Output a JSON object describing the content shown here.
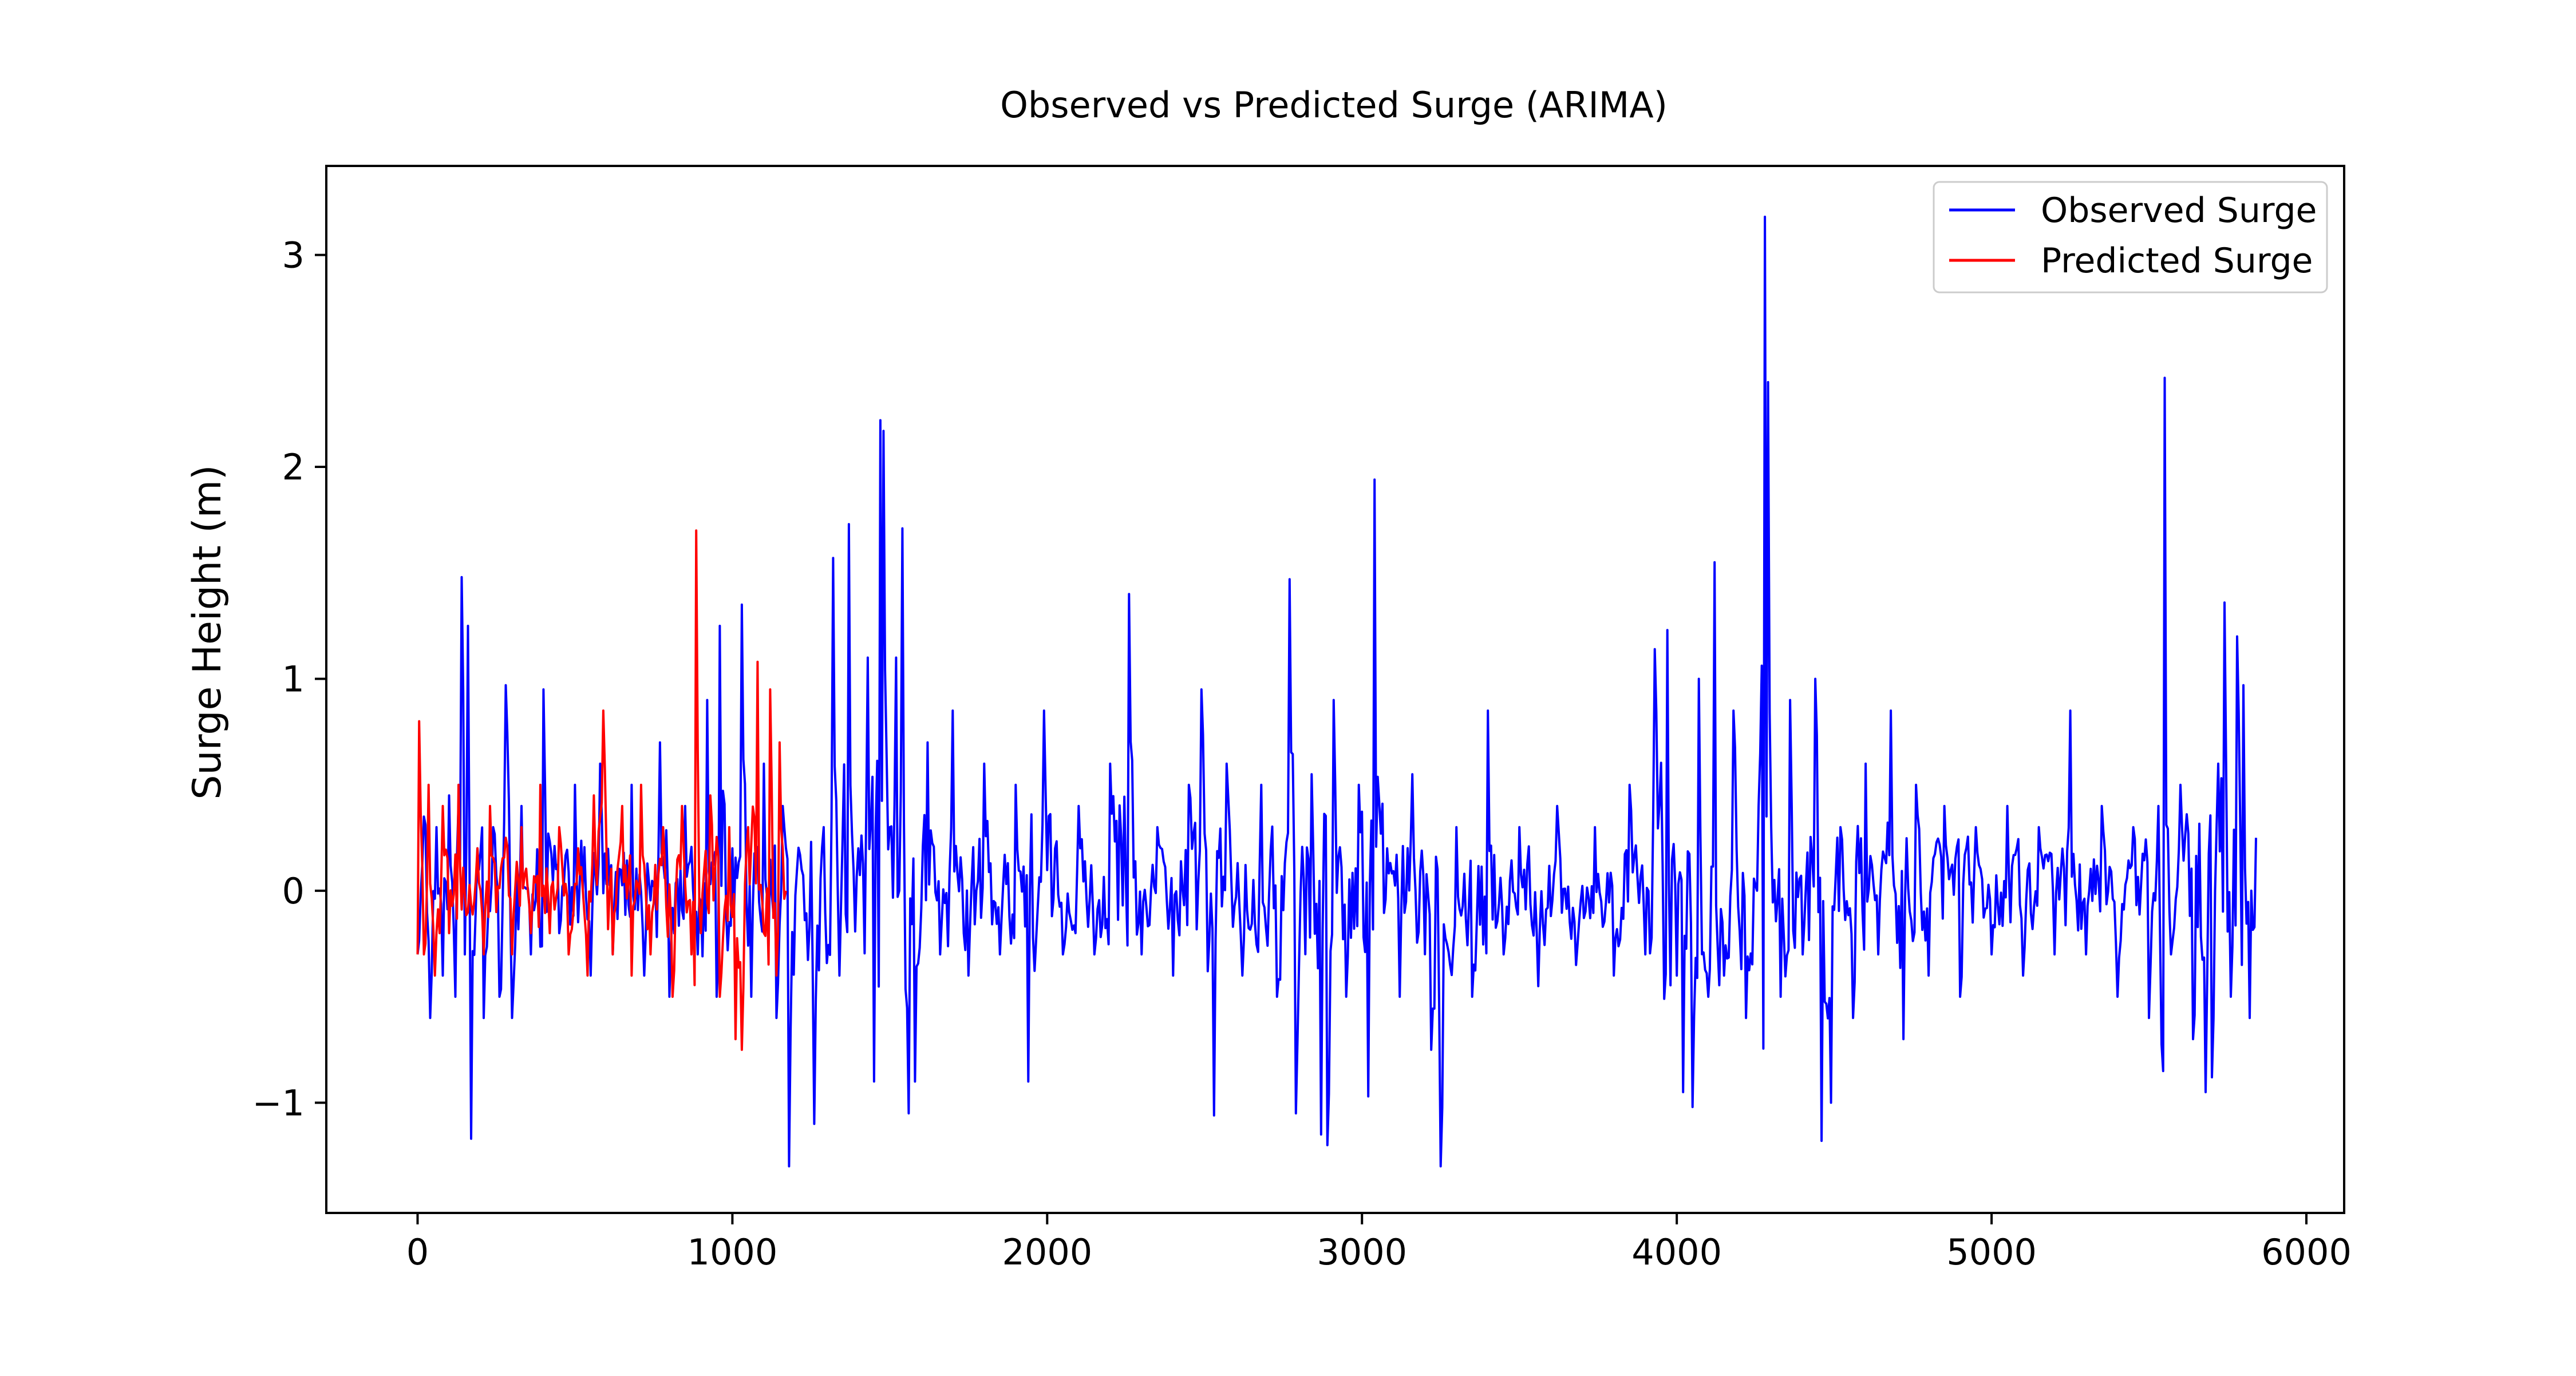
{
  "chart_data": {
    "type": "line",
    "title": "Observed vs Predicted Surge (ARIMA)",
    "xlabel": "",
    "ylabel": "Surge Height (m)",
    "xlim": [
      -290,
      6120
    ],
    "ylim": [
      -1.52,
      3.42
    ],
    "xticks": [
      0,
      1000,
      2000,
      3000,
      4000,
      5000,
      6000
    ],
    "xtick_labels": [
      "0",
      "1000",
      "2000",
      "3000",
      "4000",
      "5000",
      "6000"
    ],
    "yticks": [
      -1,
      0,
      1,
      2,
      3
    ],
    "ytick_labels": [
      "−1",
      "0",
      "1",
      "2",
      "3"
    ],
    "grid": false,
    "legend_position": "top-right",
    "series": [
      {
        "name": "Observed Surge",
        "color": "#0000ff",
        "x_start": 0,
        "x_end": 5840,
        "approx_points": [
          [
            0,
            -0.3
          ],
          [
            20,
            0.35
          ],
          [
            40,
            -0.6
          ],
          [
            60,
            0.3
          ],
          [
            80,
            -0.4
          ],
          [
            100,
            0.45
          ],
          [
            120,
            -0.5
          ],
          [
            140,
            1.48
          ],
          [
            150,
            -0.3
          ],
          [
            160,
            1.25
          ],
          [
            170,
            -1.17
          ],
          [
            190,
            0.2
          ],
          [
            210,
            -0.6
          ],
          [
            240,
            0.3
          ],
          [
            260,
            -0.5
          ],
          [
            280,
            0.97
          ],
          [
            300,
            -0.6
          ],
          [
            330,
            0.4
          ],
          [
            360,
            -0.3
          ],
          [
            400,
            0.95
          ],
          [
            450,
            -0.2
          ],
          [
            500,
            0.5
          ],
          [
            550,
            -0.4
          ],
          [
            580,
            0.6
          ],
          [
            620,
            -0.3
          ],
          [
            680,
            0.5
          ],
          [
            720,
            -0.4
          ],
          [
            770,
            0.7
          ],
          [
            800,
            -0.5
          ],
          [
            850,
            0.4
          ],
          [
            890,
            -0.3
          ],
          [
            920,
            0.9
          ],
          [
            950,
            -0.5
          ],
          [
            960,
            1.25
          ],
          [
            1000,
            0.2
          ],
          [
            1030,
            1.35
          ],
          [
            1060,
            -0.5
          ],
          [
            1100,
            0.6
          ],
          [
            1140,
            -0.6
          ],
          [
            1160,
            0.4
          ],
          [
            1180,
            -1.3
          ],
          [
            1220,
            0.1
          ],
          [
            1260,
            -1.1
          ],
          [
            1290,
            0.3
          ],
          [
            1320,
            1.57
          ],
          [
            1340,
            -0.4
          ],
          [
            1370,
            1.73
          ],
          [
            1400,
            0.2
          ],
          [
            1430,
            1.1
          ],
          [
            1450,
            -0.9
          ],
          [
            1470,
            2.22
          ],
          [
            1480,
            2.17
          ],
          [
            1500,
            0.3
          ],
          [
            1520,
            1.1
          ],
          [
            1540,
            1.71
          ],
          [
            1560,
            -1.05
          ],
          [
            1580,
            -0.9
          ],
          [
            1620,
            0.7
          ],
          [
            1660,
            -0.3
          ],
          [
            1700,
            0.85
          ],
          [
            1750,
            -0.4
          ],
          [
            1800,
            0.6
          ],
          [
            1850,
            -0.3
          ],
          [
            1900,
            0.5
          ],
          [
            1940,
            -0.9
          ],
          [
            1990,
            0.85
          ],
          [
            2050,
            -0.3
          ],
          [
            2100,
            0.4
          ],
          [
            2150,
            -0.3
          ],
          [
            2200,
            0.6
          ],
          [
            2260,
            1.4
          ],
          [
            2300,
            -0.3
          ],
          [
            2350,
            0.3
          ],
          [
            2400,
            -0.4
          ],
          [
            2450,
            0.5
          ],
          [
            2490,
            0.95
          ],
          [
            2530,
            -1.06
          ],
          [
            2570,
            0.6
          ],
          [
            2620,
            -0.4
          ],
          [
            2680,
            0.5
          ],
          [
            2730,
            -0.5
          ],
          [
            2770,
            1.47
          ],
          [
            2790,
            -1.05
          ],
          [
            2840,
            0.55
          ],
          [
            2870,
            -1.15
          ],
          [
            2890,
            -1.2
          ],
          [
            2910,
            0.9
          ],
          [
            2950,
            -0.5
          ],
          [
            2990,
            0.5
          ],
          [
            3020,
            -0.97
          ],
          [
            3040,
            1.94
          ],
          [
            3080,
            0.2
          ],
          [
            3120,
            -0.5
          ],
          [
            3160,
            0.55
          ],
          [
            3220,
            -0.75
          ],
          [
            3250,
            -1.3
          ],
          [
            3300,
            0.3
          ],
          [
            3350,
            -0.5
          ],
          [
            3400,
            0.85
          ],
          [
            3450,
            -0.3
          ],
          [
            3500,
            0.3
          ],
          [
            3560,
            -0.45
          ],
          [
            3620,
            0.4
          ],
          [
            3680,
            -0.35
          ],
          [
            3740,
            0.3
          ],
          [
            3800,
            -0.4
          ],
          [
            3850,
            0.5
          ],
          [
            3900,
            -0.3
          ],
          [
            3930,
            1.14
          ],
          [
            3970,
            1.23
          ],
          [
            4000,
            -0.4
          ],
          [
            4020,
            -0.95
          ],
          [
            4050,
            -1.02
          ],
          [
            4070,
            1.0
          ],
          [
            4100,
            -0.5
          ],
          [
            4120,
            1.55
          ],
          [
            4150,
            -0.4
          ],
          [
            4180,
            0.85
          ],
          [
            4220,
            -0.6
          ],
          [
            4260,
            0.4
          ],
          [
            4280,
            3.18
          ],
          [
            4290,
            2.4
          ],
          [
            4300,
            0.3
          ],
          [
            4330,
            -0.5
          ],
          [
            4360,
            0.9
          ],
          [
            4400,
            -0.3
          ],
          [
            4440,
            1.0
          ],
          [
            4460,
            -1.18
          ],
          [
            4490,
            -1.0
          ],
          [
            4520,
            0.3
          ],
          [
            4560,
            -0.6
          ],
          [
            4600,
            0.6
          ],
          [
            4640,
            -0.3
          ],
          [
            4680,
            0.85
          ],
          [
            4720,
            -0.7
          ],
          [
            4760,
            0.5
          ],
          [
            4800,
            -0.4
          ],
          [
            4850,
            0.4
          ],
          [
            4900,
            -0.5
          ],
          [
            4950,
            0.3
          ],
          [
            5000,
            -0.3
          ],
          [
            5050,
            0.4
          ],
          [
            5100,
            -0.4
          ],
          [
            5150,
            0.3
          ],
          [
            5200,
            -0.3
          ],
          [
            5250,
            0.85
          ],
          [
            5300,
            -0.3
          ],
          [
            5350,
            0.4
          ],
          [
            5400,
            -0.5
          ],
          [
            5450,
            0.3
          ],
          [
            5500,
            -0.6
          ],
          [
            5530,
            0.4
          ],
          [
            5550,
            2.42
          ],
          [
            5570,
            -0.3
          ],
          [
            5600,
            0.5
          ],
          [
            5640,
            -0.7
          ],
          [
            5680,
            -0.95
          ],
          [
            5700,
            -0.88
          ],
          [
            5720,
            0.6
          ],
          [
            5740,
            1.36
          ],
          [
            5760,
            -0.5
          ],
          [
            5780,
            1.2
          ],
          [
            5800,
            0.97
          ],
          [
            5820,
            -0.6
          ],
          [
            5840,
            0.25
          ]
        ]
      },
      {
        "name": "Predicted Surge",
        "color": "#ff0000",
        "x_start": 0,
        "x_end": 1170,
        "approx_points": [
          [
            0,
            -0.3
          ],
          [
            5,
            0.8
          ],
          [
            20,
            -0.3
          ],
          [
            35,
            0.5
          ],
          [
            55,
            -0.4
          ],
          [
            80,
            0.4
          ],
          [
            100,
            -0.2
          ],
          [
            130,
            0.5
          ],
          [
            160,
            -0.1
          ],
          [
            190,
            0.2
          ],
          [
            210,
            -0.3
          ],
          [
            230,
            0.4
          ],
          [
            250,
            -0.1
          ],
          [
            280,
            0.25
          ],
          [
            300,
            -0.3
          ],
          [
            330,
            0.3
          ],
          [
            360,
            -0.2
          ],
          [
            390,
            0.5
          ],
          [
            420,
            -0.2
          ],
          [
            450,
            0.3
          ],
          [
            480,
            -0.3
          ],
          [
            510,
            0.2
          ],
          [
            540,
            -0.4
          ],
          [
            560,
            0.45
          ],
          [
            590,
            0.85
          ],
          [
            620,
            -0.3
          ],
          [
            650,
            0.4
          ],
          [
            680,
            -0.4
          ],
          [
            710,
            0.5
          ],
          [
            740,
            -0.3
          ],
          [
            780,
            0.3
          ],
          [
            810,
            -0.5
          ],
          [
            840,
            0.4
          ],
          [
            870,
            -0.3
          ],
          [
            885,
            1.7
          ],
          [
            900,
            -0.2
          ],
          [
            930,
            0.45
          ],
          [
            960,
            -0.5
          ],
          [
            990,
            0.3
          ],
          [
            1010,
            -0.7
          ],
          [
            1030,
            -0.75
          ],
          [
            1050,
            0.3
          ],
          [
            1080,
            1.08
          ],
          [
            1100,
            -0.2
          ],
          [
            1120,
            0.95
          ],
          [
            1140,
            -0.4
          ],
          [
            1150,
            0.7
          ],
          [
            1170,
            0.0
          ]
        ]
      }
    ]
  }
}
